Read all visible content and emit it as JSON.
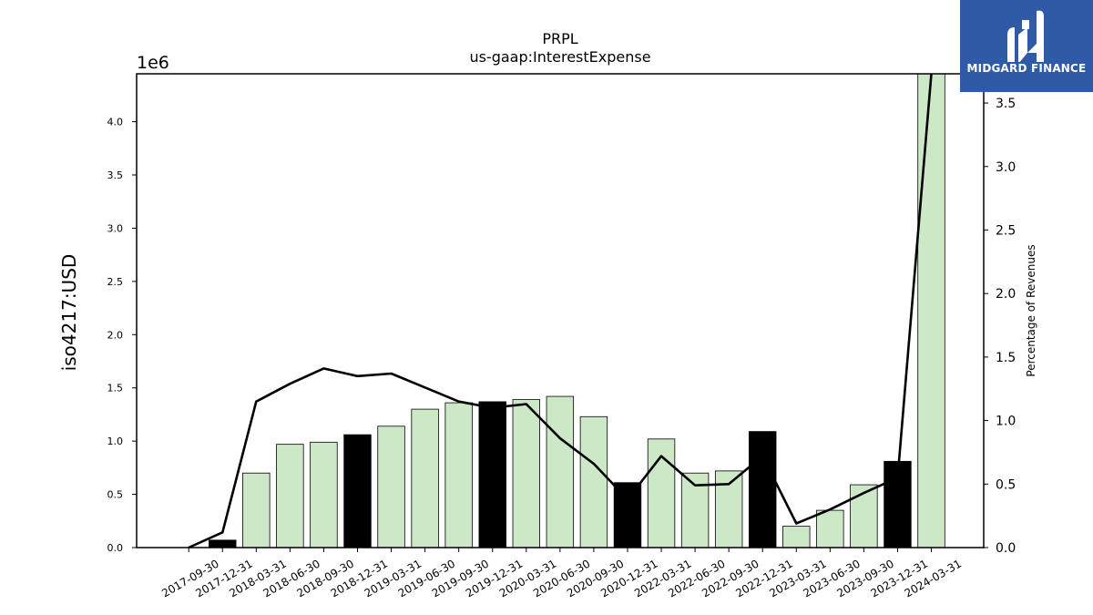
{
  "brand": {
    "name": "MIDGARD FINANCE",
    "color": "#2f5aa8"
  },
  "chart_data": {
    "type": "bar",
    "title": "PRPL",
    "subtitle": "us-gaap:InterestExpense",
    "ylabel": "iso4217:USD",
    "y_scale_label": "1e6",
    "y2label": "Percentage of Revenues",
    "ylim": [
      0,
      4.45
    ],
    "y2lim": [
      0,
      3.73
    ],
    "yticks": [
      "0.0",
      "0.5",
      "1.0",
      "1.5",
      "2.0",
      "2.5",
      "3.0",
      "3.5",
      "4.0"
    ],
    "y2ticks": [
      "0.0",
      "0.5",
      "1.0",
      "1.5",
      "2.0",
      "2.5",
      "3.0",
      "3.5"
    ],
    "categories": [
      "2017-09-30",
      "2017-12-31",
      "2018-03-31",
      "2018-06-30",
      "2018-09-30",
      "2018-12-31",
      "2019-03-31",
      "2019-06-30",
      "2019-09-30",
      "2019-12-31",
      "2020-03-31",
      "2020-06-30",
      "2020-09-30",
      "2020-12-31",
      "2022-03-31",
      "2022-06-30",
      "2022-09-30",
      "2022-12-31",
      "2023-03-31",
      "2023-06-30",
      "2023-09-30",
      "2023-12-31",
      "2024-03-31"
    ],
    "series": [
      {
        "values": [
          0,
          0.07,
          0.7,
          0.97,
          0.99,
          1.06,
          1.14,
          1.3,
          1.36,
          1.37,
          1.39,
          1.42,
          1.23,
          0.61,
          1.02,
          0.7,
          0.72,
          1.09,
          0.2,
          0.35,
          0.59,
          0.81,
          4.45
        ],
        "highlight": [
          false,
          true,
          false,
          false,
          false,
          true,
          false,
          false,
          false,
          true,
          false,
          false,
          false,
          true,
          false,
          false,
          false,
          true,
          false,
          false,
          false,
          true,
          false
        ],
        "color": "#cde8c7",
        "highlight_color": "#000000"
      },
      {
        "name": "Percentage of Revenues",
        "type": "line",
        "axis": "right",
        "values": [
          0.0,
          0.12,
          1.15,
          1.29,
          1.41,
          1.35,
          1.37,
          1.26,
          1.15,
          1.1,
          1.13,
          0.86,
          0.66,
          0.38,
          0.72,
          0.49,
          0.5,
          0.72,
          0.19,
          0.3,
          0.43,
          0.55,
          3.73
        ],
        "color": "#000000"
      }
    ],
    "grid": false
  }
}
